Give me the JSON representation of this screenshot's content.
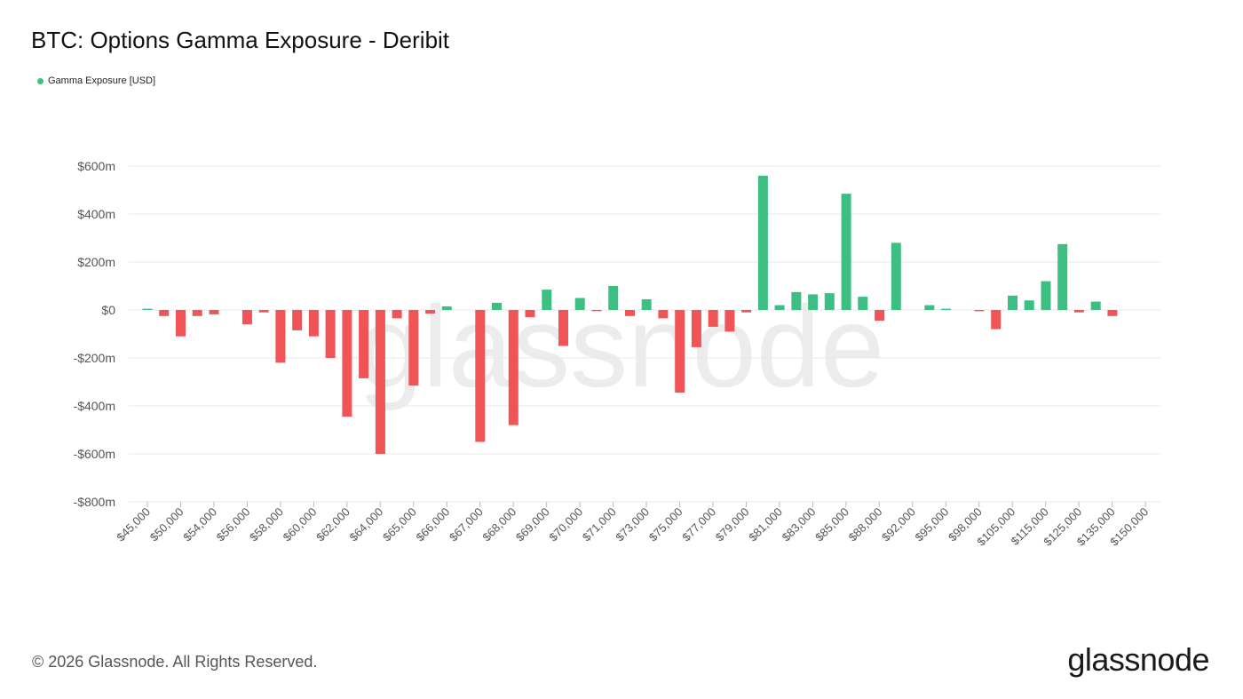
{
  "header": {
    "title": "BTC: Options Gamma Exposure - Deribit"
  },
  "legend": {
    "label": "Gamma Exposure [USD]",
    "color": "#3dbf83"
  },
  "footer": {
    "copyright": "© 2026 Glassnode. All Rights Reserved."
  },
  "brand": {
    "logo_text": "glassnode"
  },
  "watermark": {
    "text": "glassnode"
  },
  "colors": {
    "positive": "#3dbf83",
    "negative": "#f05456",
    "grid": "#e9e9e9"
  },
  "chart_data": {
    "type": "bar",
    "title": "BTC: Options Gamma Exposure - Deribit",
    "series": [
      {
        "name": "Gamma Exposure [USD]",
        "values": [
          5,
          -25,
          -110,
          -25,
          -18,
          0,
          -60,
          -10,
          -220,
          -85,
          -110,
          -200,
          -445,
          -285,
          -600,
          -35,
          -315,
          -15,
          15,
          0,
          -550,
          30,
          -480,
          -30,
          85,
          -150,
          50,
          -5,
          100,
          -25,
          45,
          -35,
          -345,
          -155,
          -70,
          -90,
          -10,
          560,
          20,
          75,
          65,
          70,
          485,
          55,
          -45,
          280,
          0,
          20,
          5,
          0,
          -5,
          -80,
          60,
          40,
          120,
          275,
          -10,
          35,
          -25,
          0
        ]
      }
    ],
    "ylim": [
      -800,
      600
    ],
    "yticks": [
      600,
      400,
      200,
      0,
      -200,
      -400,
      -600,
      -800
    ],
    "ytick_labels": [
      "$600m",
      "$400m",
      "$200m",
      "$0",
      "-$200m",
      "-$400m",
      "-$600m",
      "-$800m"
    ],
    "xtick_labels": [
      "$45,000",
      "$50,000",
      "$54,000",
      "$56,000",
      "$58,000",
      "$60,000",
      "$62,000",
      "$64,000",
      "$65,000",
      "$66,000",
      "$67,000",
      "$68,000",
      "$69,000",
      "$70,000",
      "$71,000",
      "$73,000",
      "$75,000",
      "$77,000",
      "$79,000",
      "$81,000",
      "$83,000",
      "$85,000",
      "$88,000",
      "$92,000",
      "$95,000",
      "$98,000",
      "$105,000",
      "$115,000",
      "$125,000",
      "$135,000",
      "$150,000"
    ],
    "grid": true,
    "legend_position": "top-left"
  }
}
